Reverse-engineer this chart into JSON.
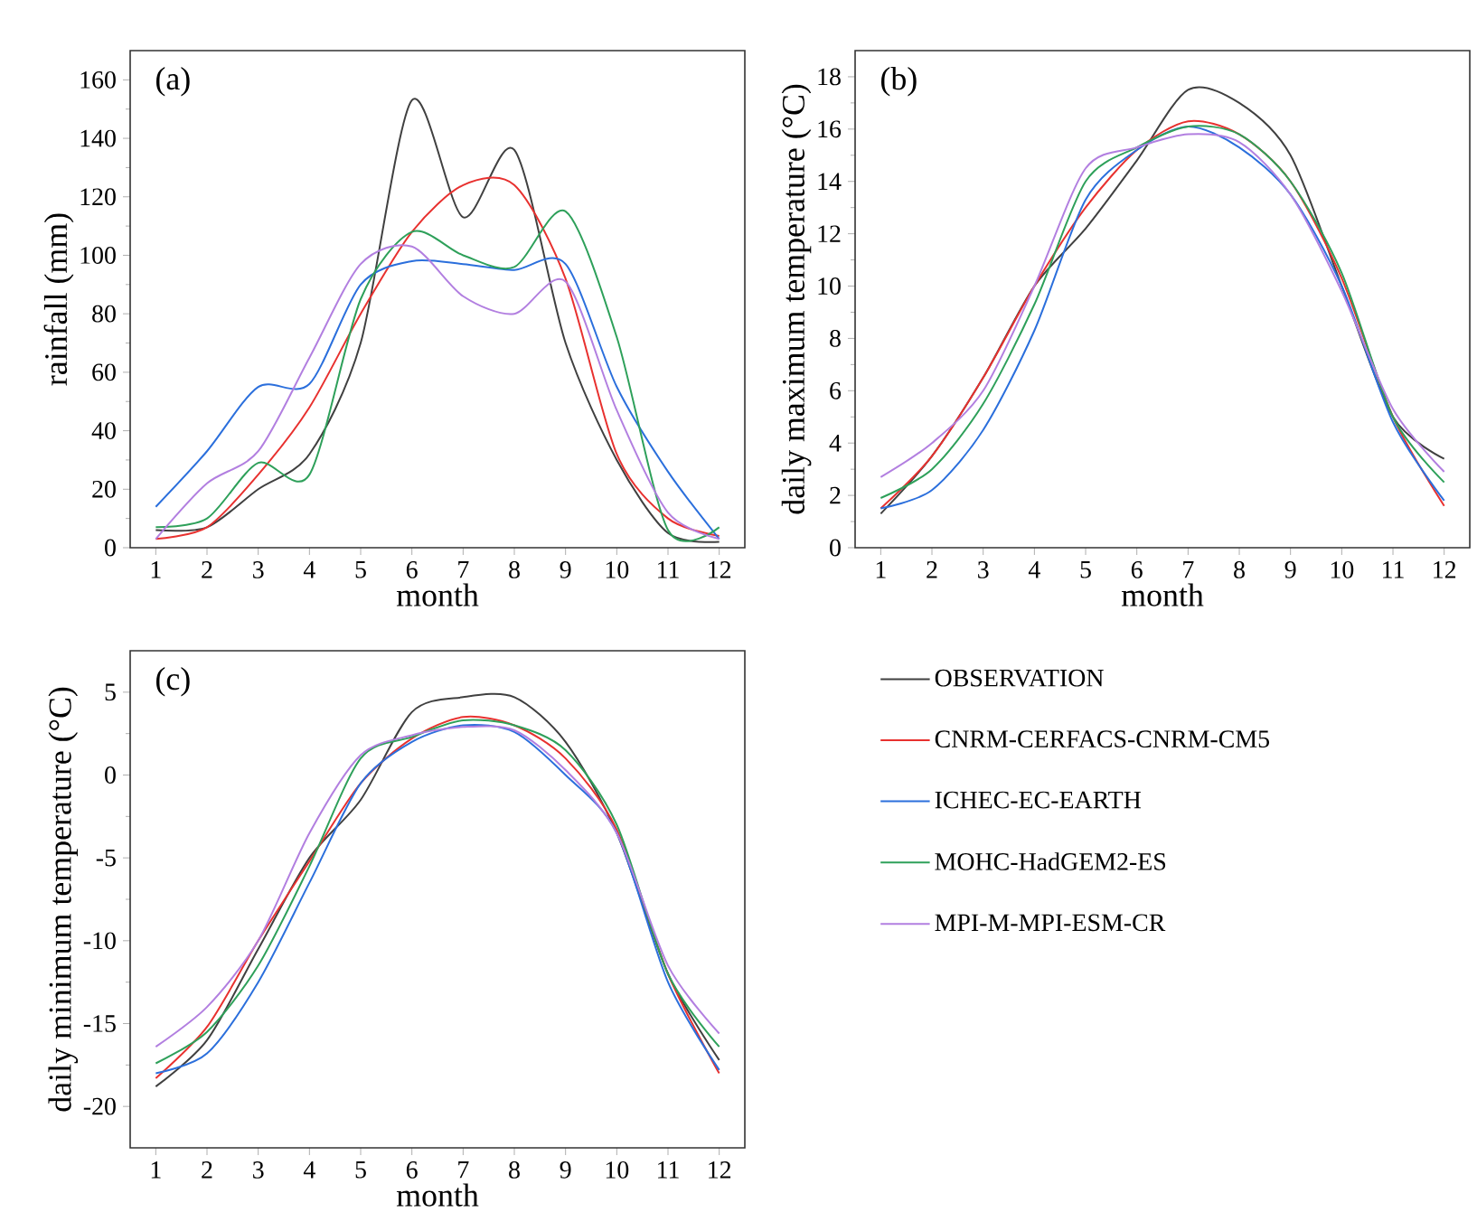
{
  "chart_data": [
    {
      "type": "line",
      "title": "(a)",
      "xlabel": "month",
      "ylabel": "rainfall (mm)",
      "x": [
        1,
        2,
        3,
        4,
        5,
        6,
        7,
        8,
        9,
        10,
        11,
        12
      ],
      "xlim": [
        0.5,
        12.5
      ],
      "xticks": [
        1,
        2,
        3,
        4,
        5,
        6,
        7,
        8,
        9,
        10,
        11,
        12
      ],
      "ylim": [
        0,
        170
      ],
      "yticks": [
        0,
        20,
        40,
        60,
        80,
        100,
        120,
        140,
        160
      ],
      "line_style": "solid",
      "legend": "bottom right",
      "series": [
        {
          "name": "OBSERVATION",
          "color": "#404040",
          "values": [
            6,
            7,
            20,
            32,
            70,
            153,
            113,
            136,
            70,
            30,
            5,
            2
          ]
        },
        {
          "name": "CNRM-CERFACS-CNRM-CM5",
          "color": "#e8312f",
          "values": [
            3,
            7,
            25,
            48,
            80,
            108,
            124,
            124,
            92,
            32,
            10,
            4
          ]
        },
        {
          "name": "ICHEC-EC-EARTH",
          "color": "#2b6fdc",
          "values": [
            14,
            33,
            55,
            56,
            90,
            98,
            97,
            95,
            97,
            55,
            26,
            3
          ]
        },
        {
          "name": "MOHC-HadGEM2-ES",
          "color": "#2ea05a",
          "values": [
            7,
            10,
            29,
            25,
            85,
            108,
            100,
            96,
            115,
            72,
            6,
            7
          ]
        },
        {
          "name": "MPI-M-MPI-ESM-CR",
          "color": "#b27fe0",
          "values": [
            3,
            22,
            33,
            65,
            97,
            103,
            86,
            80,
            91,
            47,
            12,
            3
          ]
        }
      ]
    },
    {
      "type": "line",
      "title": "(b)",
      "xlabel": "month",
      "ylabel": "daily maximum temperature (°C)",
      "x": [
        1,
        2,
        3,
        4,
        5,
        6,
        7,
        8,
        9,
        10,
        11,
        12
      ],
      "xlim": [
        0.5,
        12.5
      ],
      "xticks": [
        1,
        2,
        3,
        4,
        5,
        6,
        7,
        8,
        9,
        10,
        11,
        12
      ],
      "ylim": [
        0,
        19
      ],
      "yticks": [
        0,
        2,
        4,
        6,
        8,
        10,
        12,
        14,
        16,
        18
      ],
      "line_style": "solid",
      "series": [
        {
          "color": "#404040",
          "values": [
            1.3,
            3.5,
            6.5,
            10,
            12.2,
            14.8,
            17.5,
            17,
            15,
            10,
            5,
            3.4
          ]
        },
        {
          "color": "#e8312f",
          "values": [
            1.5,
            3.5,
            6.5,
            10,
            13,
            15.2,
            16.3,
            15.8,
            14,
            10.3,
            5,
            1.6
          ]
        },
        {
          "color": "#2b6fdc",
          "values": [
            1.5,
            2.2,
            4.5,
            8.3,
            13.3,
            15.2,
            16.1,
            15.3,
            13.5,
            10,
            4.8,
            1.8
          ]
        },
        {
          "color": "#2ea05a",
          "values": [
            1.9,
            3,
            5.5,
            9.3,
            14,
            15.3,
            16.1,
            15.8,
            14,
            10.5,
            5,
            2.5
          ]
        },
        {
          "color": "#b27fe0",
          "values": [
            2.7,
            4,
            6,
            10,
            14.5,
            15.3,
            15.8,
            15.5,
            13.5,
            9.8,
            5.3,
            2.9
          ]
        }
      ]
    },
    {
      "type": "line",
      "title": "(c)",
      "xlabel": "month",
      "ylabel": "daily minimum temperature (°C)",
      "x": [
        1,
        2,
        3,
        4,
        5,
        6,
        7,
        8,
        9,
        10,
        11,
        12
      ],
      "xlim": [
        0.5,
        12.5
      ],
      "xticks": [
        1,
        2,
        3,
        4,
        5,
        6,
        7,
        8,
        9,
        10,
        11,
        12
      ],
      "ylim": [
        -22.5,
        7.5
      ],
      "yticks": [
        -20,
        -15,
        -10,
        -5,
        0,
        5
      ],
      "line_style": "solid",
      "series": [
        {
          "color": "#404040",
          "values": [
            -18.8,
            -16,
            -10.5,
            -5,
            -1.5,
            3.8,
            4.7,
            4.7,
            2,
            -3.5,
            -12,
            -17.2
          ]
        },
        {
          "color": "#e8312f",
          "values": [
            -18.3,
            -15.2,
            -10,
            -5.2,
            -0.5,
            2.2,
            3.5,
            3,
            1,
            -3.3,
            -12,
            -18
          ]
        },
        {
          "color": "#2b6fdc",
          "values": [
            -18,
            -16.8,
            -12.5,
            -6.5,
            -0.5,
            2,
            3,
            2.6,
            0,
            -3.5,
            -12.5,
            -17.8
          ]
        },
        {
          "color": "#2ea05a",
          "values": [
            -17.4,
            -15.5,
            -11.5,
            -5.5,
            1,
            2.3,
            3.3,
            3,
            1.5,
            -3,
            -12,
            -16.4
          ]
        },
        {
          "color": "#b27fe0",
          "values": [
            -16.4,
            -14,
            -10,
            -3.5,
            1.2,
            2.4,
            2.9,
            2.7,
            0.3,
            -3.5,
            -11.5,
            -15.6
          ]
        }
      ]
    }
  ]
}
